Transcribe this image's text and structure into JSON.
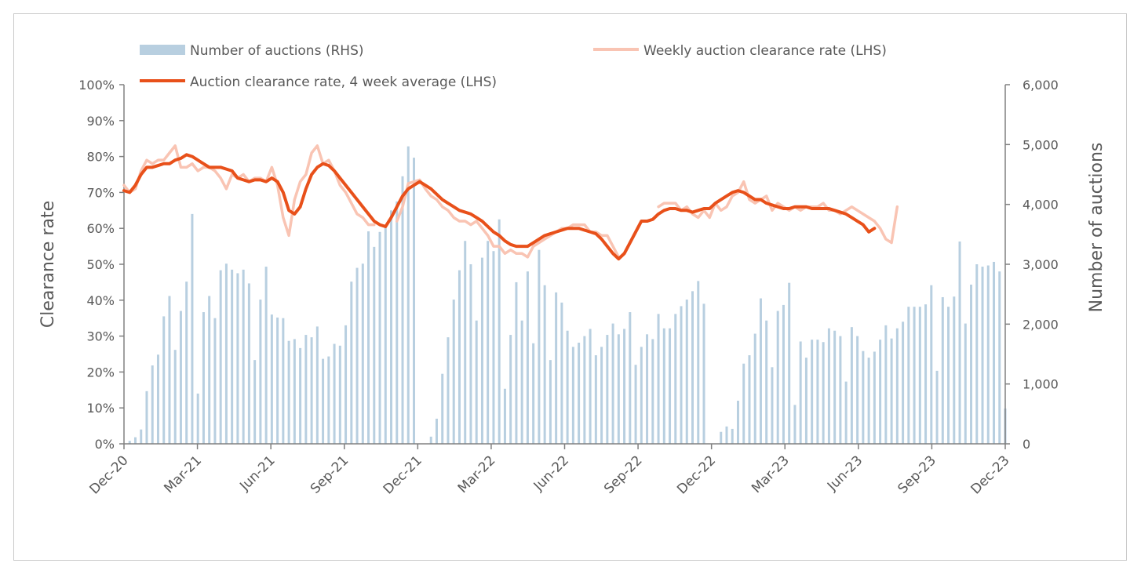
{
  "chart_data": {
    "type": "bar",
    "ylabel_left": "Clearance rate",
    "ylabel_right": "Number of auctions",
    "left_axis": {
      "min": 0,
      "max": 100,
      "ticks": [
        "0%",
        "10%",
        "20%",
        "30%",
        "40%",
        "50%",
        "60%",
        "70%",
        "80%",
        "90%",
        "100%"
      ]
    },
    "right_axis": {
      "min": 0,
      "max": 6000,
      "ticks": [
        "0",
        "1,000",
        "2,000",
        "3,000",
        "4,000",
        "5,000",
        "6,000"
      ]
    },
    "x_ticks": [
      "Dec-20",
      "Mar-21",
      "Jun-21",
      "Sep-21",
      "Dec-21",
      "Mar-22",
      "Jun-22",
      "Sep-22",
      "Dec-22",
      "Mar-23",
      "Jun-23",
      "Sep-23",
      "Dec-23"
    ],
    "legend": {
      "bars": "Number of auctions (RHS)",
      "weekly": "Weekly auction clearance rate (LHS)",
      "avg": "Auction clearance rate, 4 week average (LHS)"
    },
    "colors": {
      "bars": "#b8cfe0",
      "weekly": "#f9c4b3",
      "avg": "#e8501a",
      "axis": "#808080",
      "text": "#595959"
    },
    "series": [
      {
        "name": "Number of auctions (RHS)",
        "axis": "right",
        "values": [
          0,
          50,
          110,
          240,
          880,
          1310,
          1490,
          2130,
          2470,
          1570,
          2220,
          2710,
          3840,
          840,
          2200,
          2470,
          2100,
          2900,
          3010,
          2910,
          2850,
          2910,
          2680,
          1400,
          2410,
          2960,
          2160,
          2110,
          2100,
          1720,
          1750,
          1600,
          1820,
          1780,
          1960,
          1420,
          1460,
          1670,
          1640,
          1980,
          2710,
          2940,
          3010,
          3550,
          3290,
          3540,
          3660,
          3900,
          4050,
          4470,
          4970,
          4780,
          0,
          0,
          120,
          420,
          1170,
          1780,
          2410,
          2900,
          3390,
          3000,
          2060,
          3110,
          3390,
          3220,
          3750,
          920,
          1820,
          2700,
          2060,
          2880,
          1680,
          3240,
          2650,
          1400,
          2530,
          2360,
          1890,
          1620,
          1690,
          1800,
          1920,
          1480,
          1620,
          1820,
          2010,
          1830,
          1920,
          2200,
          1320,
          1620,
          1830,
          1750,
          2170,
          1930,
          1930,
          2170,
          2300,
          2410,
          2550,
          2720,
          2340,
          0,
          0,
          200,
          290,
          250,
          720,
          1340,
          1480,
          1840,
          2430,
          2060,
          1280,
          2220,
          2320,
          2690,
          650,
          1710,
          1440,
          1740,
          1740,
          1700,
          1930,
          1890,
          1800,
          1040,
          1950,
          1800,
          1550,
          1440,
          1540,
          1740,
          1980,
          1760,
          1930,
          2040,
          2290,
          2290,
          2290,
          2330,
          2650,
          1220,
          2450,
          2290,
          2460,
          3380,
          2010,
          2660,
          3000,
          2960,
          2980,
          3040,
          2880,
          590
        ]
      },
      {
        "name": "Weekly auction clearance rate (LHS)",
        "axis": "left",
        "values": [
          72,
          70,
          71,
          76,
          79,
          78,
          79,
          79,
          81,
          83,
          77,
          77,
          78,
          76,
          77,
          77,
          76,
          74,
          71,
          75,
          74,
          75,
          73,
          74,
          74,
          73,
          77,
          72,
          63,
          58,
          68,
          73,
          75,
          81,
          83,
          78,
          79,
          76,
          72,
          70,
          67,
          64,
          63,
          61,
          61,
          null,
          null,
          null,
          62,
          66,
          72.5,
          73,
          73.5,
          71,
          69,
          68,
          66,
          65,
          63,
          62,
          62,
          61,
          62,
          60,
          58,
          55,
          55,
          53,
          54,
          53,
          53,
          52,
          55,
          56,
          57,
          58,
          59,
          60,
          60,
          61,
          61,
          61,
          59,
          59,
          58,
          58,
          55,
          52,
          null,
          null,
          null,
          null,
          null,
          null,
          66,
          67,
          67,
          67,
          65,
          66,
          64,
          63,
          65,
          63,
          67,
          65,
          66,
          69,
          70,
          73,
          68,
          67,
          68,
          69,
          65,
          67,
          66,
          65,
          66,
          65,
          66,
          66,
          66,
          67,
          65,
          65,
          64,
          65,
          66,
          65,
          64,
          63,
          62,
          60,
          57,
          56,
          66
        ]
      },
      {
        "name": "Auction clearance rate, 4 week average (LHS)",
        "axis": "left",
        "values": [
          70.5,
          70,
          72,
          75,
          77,
          77,
          77.5,
          78,
          78,
          79,
          79.5,
          80.5,
          80,
          79,
          78,
          77,
          77,
          77,
          76.5,
          76,
          74,
          73.5,
          73,
          73.5,
          73.5,
          73,
          74,
          73,
          70,
          65,
          64,
          66,
          71,
          75,
          77,
          78,
          77.5,
          76,
          74,
          72,
          70,
          68,
          66,
          64,
          62,
          61,
          60.5,
          63,
          66,
          69,
          71,
          72,
          73,
          72,
          71,
          69.5,
          68,
          67,
          66,
          65,
          64.5,
          64,
          63,
          62,
          60.5,
          59,
          58,
          56.5,
          55.5,
          55,
          55,
          55,
          56,
          57,
          58,
          58.5,
          59,
          59.5,
          60,
          60,
          60,
          59.5,
          59,
          58.5,
          57,
          55,
          53,
          51.5,
          53,
          56,
          59,
          62,
          62,
          62.5,
          64,
          65,
          65.5,
          65.5,
          65,
          65,
          64.5,
          65,
          65.5,
          65.5,
          67,
          68,
          69,
          70,
          70.5,
          70,
          69,
          68,
          68,
          67,
          66.5,
          66,
          65.5,
          65.5,
          66,
          66,
          66,
          65.5,
          65.5,
          65.5,
          65.5,
          65,
          64.5,
          64,
          63,
          62,
          61,
          59,
          60
        ]
      }
    ]
  }
}
